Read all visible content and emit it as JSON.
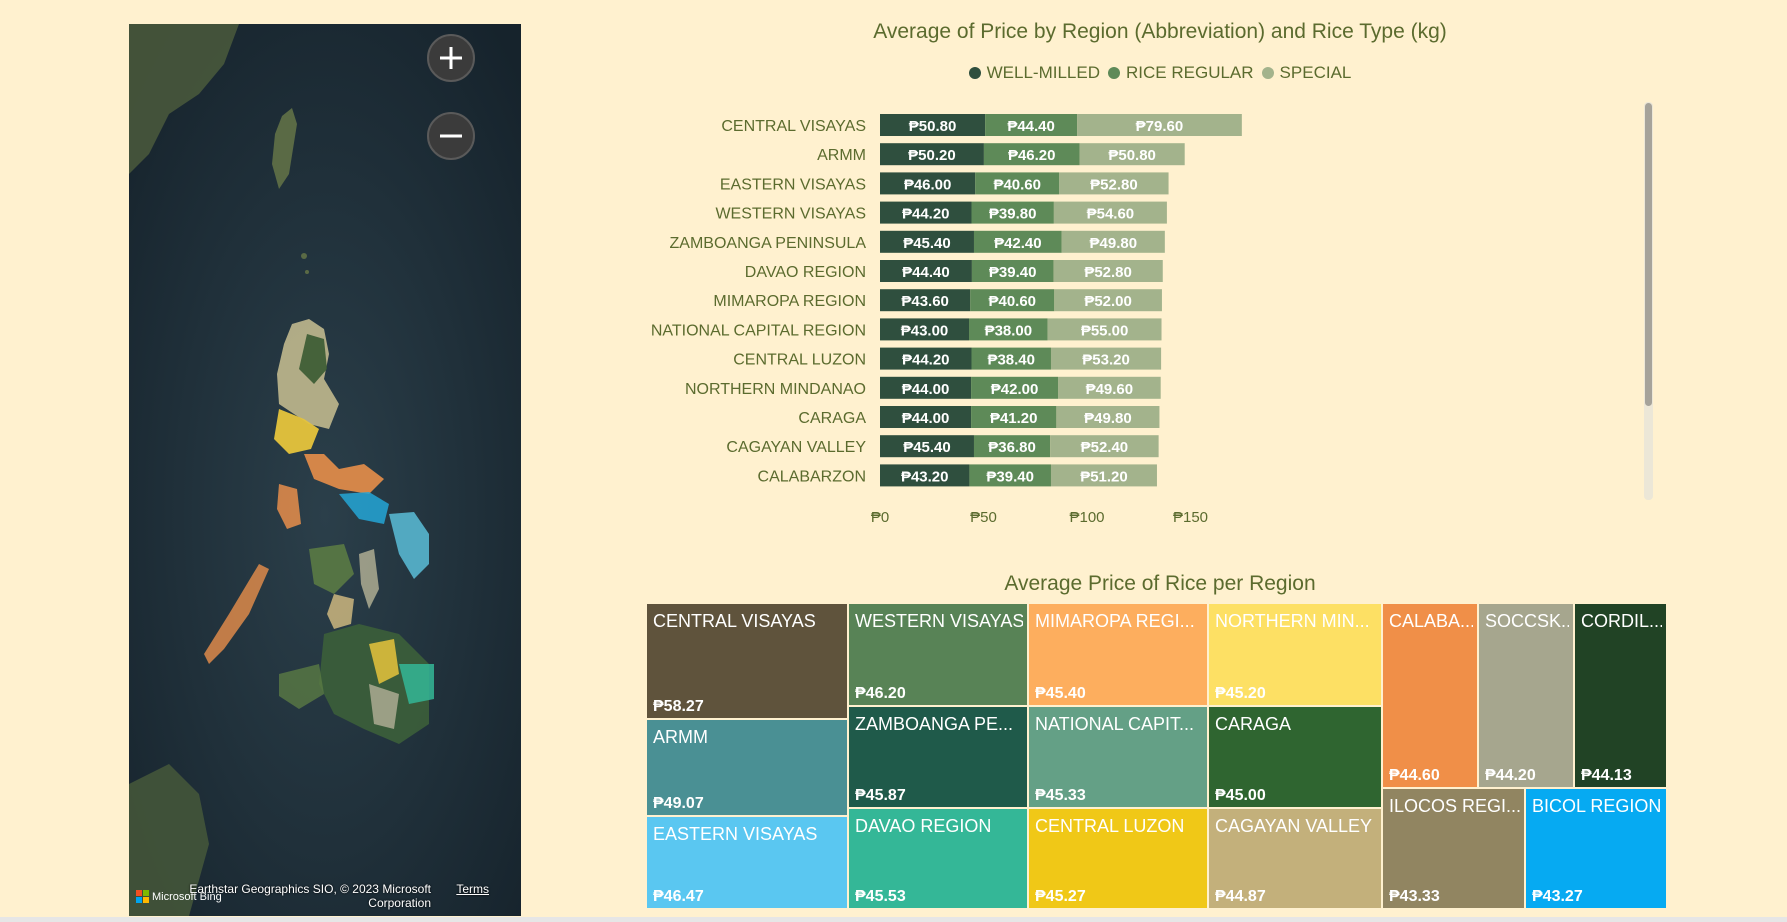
{
  "map": {
    "zoom_in_icon": "plus-icon",
    "zoom_out_icon": "minus-icon",
    "attribution": "Earthstar Geographics SIO, © 2023 Microsoft Corporation",
    "terms_label": "Terms",
    "logo_text": "Microsoft Bing"
  },
  "bar_chart": {
    "title": "Average of Price by Region (Abbreviation) and Rice Type (kg)",
    "legend": [
      {
        "label": "WELL-MILLED",
        "color": "#2f4f3e"
      },
      {
        "label": "RICE REGULAR",
        "color": "#5e8a58"
      },
      {
        "label": "SPECIAL",
        "color": "#a3b38c"
      }
    ]
  },
  "chart_data": [
    {
      "type": "bar",
      "orientation": "horizontal",
      "stacked": true,
      "title": "Average of Price by Region (Abbreviation) and Rice Type (kg)",
      "categories": [
        "CENTRAL VISAYAS",
        "ARMM",
        "EASTERN VISAYAS",
        "WESTERN VISAYAS",
        "ZAMBOANGA PENINSULA",
        "DAVAO REGION",
        "MIMAROPA REGION",
        "NATIONAL CAPITAL REGION",
        "CENTRAL LUZON",
        "NORTHERN MINDANAO",
        "CARAGA",
        "CAGAYAN VALLEY",
        "CALABARZON"
      ],
      "series": [
        {
          "name": "WELL-MILLED",
          "color": "#2f4f3e",
          "values": [
            50.8,
            50.2,
            46.0,
            44.2,
            45.4,
            44.4,
            43.6,
            43.0,
            44.2,
            44.0,
            44.0,
            45.4,
            43.2
          ]
        },
        {
          "name": "RICE REGULAR",
          "color": "#5e8a58",
          "values": [
            44.4,
            46.2,
            40.6,
            39.8,
            42.4,
            39.4,
            40.6,
            38.0,
            38.4,
            42.0,
            41.2,
            36.8,
            39.4
          ]
        },
        {
          "name": "SPECIAL",
          "color": "#a3b38c",
          "values": [
            79.6,
            50.8,
            52.8,
            54.6,
            49.8,
            52.8,
            52.0,
            55.0,
            53.2,
            49.6,
            49.8,
            52.4,
            51.2
          ]
        }
      ],
      "data_labels": [
        [
          "₱50.80",
          "₱44.40",
          "₱79.60"
        ],
        [
          "₱50.20",
          "₱46.20",
          "₱50.80"
        ],
        [
          "₱46.00",
          "₱40.60",
          "₱52.80"
        ],
        [
          "₱44.20",
          "₱39.80",
          "₱54.60"
        ],
        [
          "₱45.40",
          "₱42.40",
          "₱49.80"
        ],
        [
          "₱44.40",
          "₱39.40",
          "₱52.80"
        ],
        [
          "₱43.60",
          "₱40.60",
          "₱52.00"
        ],
        [
          "₱43.00",
          "₱38.00",
          "₱55.00"
        ],
        [
          "₱44.20",
          "₱38.40",
          "₱53.20"
        ],
        [
          "₱44.00",
          "₱42.00",
          "₱49.60"
        ],
        [
          "₱44.00",
          "₱41.20",
          "₱49.80"
        ],
        [
          "₱45.40",
          "₱36.80",
          "₱52.40"
        ],
        [
          "₱43.20",
          "₱39.40",
          "₱51.20"
        ]
      ],
      "x_ticks": [
        0,
        50,
        100,
        150
      ],
      "x_tick_labels": [
        "₱0",
        "₱50",
        "₱100",
        "₱150"
      ],
      "xlim": [
        0,
        190
      ],
      "legend_position": "top-center",
      "grid": false
    },
    {
      "type": "treemap",
      "title": "Average Price of Rice per Region",
      "items": [
        {
          "label": "CENTRAL VISAYAS",
          "value_label": "₱58.27",
          "value": 58.27,
          "color": "#5f533c"
        },
        {
          "label": "ARMM",
          "value_label": "₱49.07",
          "value": 49.07,
          "color": "#4a9094"
        },
        {
          "label": "EASTERN VISAYAS",
          "value_label": "₱46.47",
          "value": 46.47,
          "color": "#5ac7f1"
        },
        {
          "label": "WESTERN VISAYAS",
          "value_label": "₱46.20",
          "value": 46.2,
          "color": "#588356"
        },
        {
          "label": "ZAMBOANGA PE...",
          "value_label": "₱45.87",
          "value": 45.87,
          "color": "#1f5a4a"
        },
        {
          "label": "DAVAO REGION",
          "value_label": "₱45.53",
          "value": 45.53,
          "color": "#34b797"
        },
        {
          "label": "MIMAROPA REGI...",
          "value_label": "₱45.40",
          "value": 45.4,
          "color": "#fdae5e"
        },
        {
          "label": "NATIONAL CAPIT...",
          "value_label": "₱45.33",
          "value": 45.33,
          "color": "#64a086"
        },
        {
          "label": "CENTRAL LUZON",
          "value_label": "₱45.27",
          "value": 45.27,
          "color": "#f0c817"
        },
        {
          "label": "NORTHERN MIN...",
          "value_label": "₱45.20",
          "value": 45.2,
          "color": "#fde064"
        },
        {
          "label": "CARAGA",
          "value_label": "₱45.00",
          "value": 45.0,
          "color": "#2f6530"
        },
        {
          "label": "CAGAYAN VALLEY",
          "value_label": "₱44.87",
          "value": 44.87,
          "color": "#c3b07b"
        },
        {
          "label": "CALABA...",
          "value_label": "₱44.60",
          "value": 44.6,
          "color": "#f08f48"
        },
        {
          "label": "SOCCSK...",
          "value_label": "₱44.20",
          "value": 44.2,
          "color": "#a6a68e"
        },
        {
          "label": "CORDIL...",
          "value_label": "₱44.13",
          "value": 44.13,
          "color": "#214325"
        },
        {
          "label": "ILOCOS REGI...",
          "value_label": "₱43.33",
          "value": 43.33,
          "color": "#918561"
        },
        {
          "label": "BICOL REGION",
          "value_label": "₱43.27",
          "value": 43.27,
          "color": "#06aaf2"
        }
      ]
    }
  ]
}
